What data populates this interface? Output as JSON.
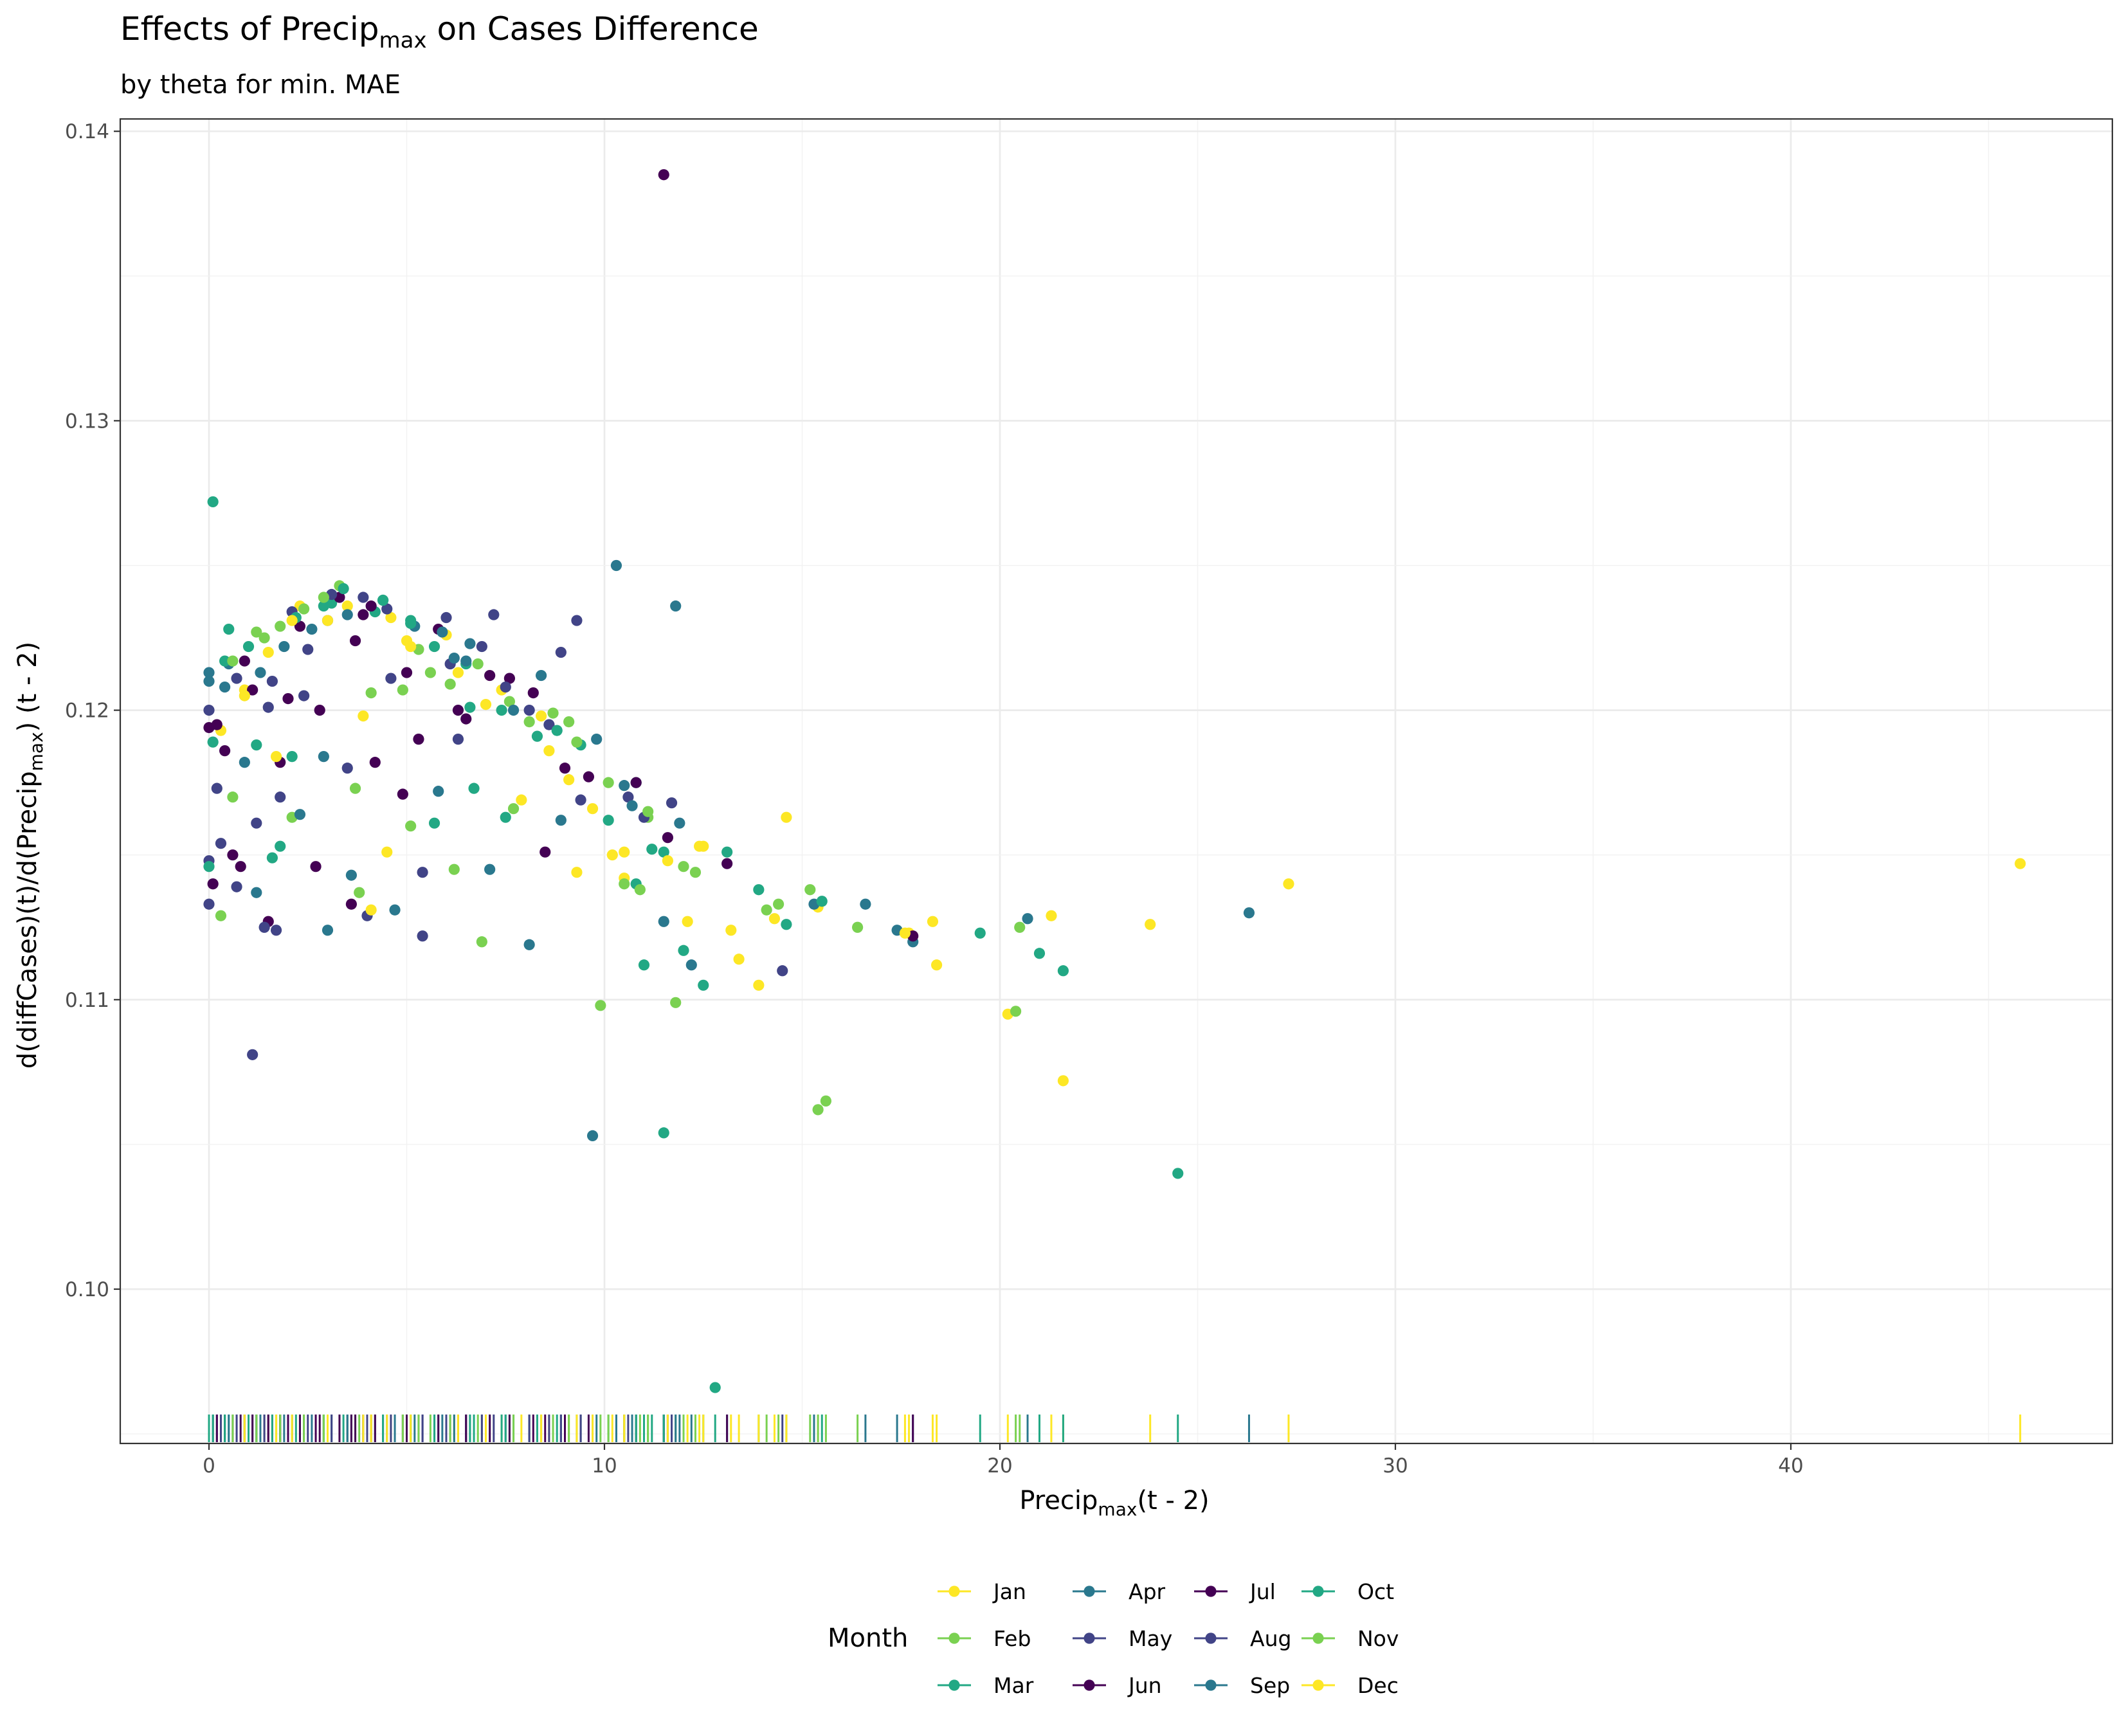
{
  "chart_data": {
    "type": "scatter",
    "title": "Effects of Precip",
    "title_sub": "max",
    "title_rest": " on Cases Difference",
    "subtitle": "by theta for min. MAE",
    "xlabel": "Precip",
    "xlabel_sub": "max",
    "xlabel_rest": "(t - 2)",
    "ylabel_pre": "d(diffCases)(t)/d(Precip",
    "ylabel_sub": "max",
    "ylabel_post": ") (t - 2)",
    "xlim": [
      -2.3,
      47.9
    ],
    "ylim": [
      0.0946,
      0.1408
    ],
    "x_ticks": [
      0,
      10,
      20,
      30,
      40
    ],
    "x_tick_labels": [
      "0",
      "10",
      "20",
      "30",
      "40"
    ],
    "y_ticks": [
      0.1,
      0.11,
      0.12,
      0.13,
      0.14
    ],
    "y_tick_labels": [
      "0.10",
      "0.11",
      "0.12",
      "0.13",
      "0.14"
    ],
    "grid": true,
    "rug": true,
    "legend": {
      "title": "Month",
      "position": "bottom",
      "items": [
        {
          "label": "Jan",
          "color": "#FDE725"
        },
        {
          "label": "Feb",
          "color": "#7AD151"
        },
        {
          "label": "Mar",
          "color": "#22A884"
        },
        {
          "label": "Apr",
          "color": "#2A788E"
        },
        {
          "label": "May",
          "color": "#414487"
        },
        {
          "label": "Jun",
          "color": "#440154"
        },
        {
          "label": "Jul",
          "color": "#440154"
        },
        {
          "label": "Aug",
          "color": "#414487"
        },
        {
          "label": "Sep",
          "color": "#2A788E"
        },
        {
          "label": "Oct",
          "color": "#22A884"
        },
        {
          "label": "Nov",
          "color": "#7AD151"
        },
        {
          "label": "Dec",
          "color": "#FDE725"
        }
      ]
    },
    "series": [
      {
        "name": "Jan",
        "color": "#FDE725",
        "points": [
          [
            0.3,
            0.1193
          ],
          [
            0.9,
            0.1207
          ],
          [
            1.5,
            0.122
          ],
          [
            2.3,
            0.1236
          ],
          [
            3.5,
            0.1236
          ],
          [
            4.6,
            0.1232
          ],
          [
            5.0,
            0.1224
          ],
          [
            6.0,
            0.1226
          ],
          [
            7.4,
            0.1207
          ],
          [
            8.6,
            0.1186
          ],
          [
            9.1,
            0.1176
          ],
          [
            10.2,
            0.115
          ],
          [
            10.5,
            0.1142
          ],
          [
            12.4,
            0.1153
          ],
          [
            13.2,
            0.1124
          ],
          [
            14.3,
            0.1128
          ],
          [
            15.4,
            0.1132
          ],
          [
            17.7,
            0.1123
          ],
          [
            18.3,
            0.1127
          ],
          [
            20.2,
            0.1095
          ],
          [
            21.6,
            0.1072
          ],
          [
            23.8,
            0.1126
          ],
          [
            27.3,
            0.114
          ],
          [
            45.8,
            0.1147
          ]
        ]
      },
      {
        "name": "Feb",
        "color": "#7AD151",
        "points": [
          [
            0.3,
            0.1129
          ],
          [
            0.6,
            0.117
          ],
          [
            1.4,
            0.1225
          ],
          [
            2.1,
            0.1163
          ],
          [
            3.3,
            0.1243
          ],
          [
            3.7,
            0.1173
          ],
          [
            4.1,
            0.1206
          ],
          [
            5.1,
            0.116
          ],
          [
            5.6,
            0.1213
          ],
          [
            6.2,
            0.1145
          ],
          [
            6.9,
            0.112
          ],
          [
            7.6,
            0.1203
          ],
          [
            8.1,
            0.1196
          ],
          [
            9.1,
            0.1196
          ],
          [
            9.9,
            0.1098
          ],
          [
            10.5,
            0.114
          ],
          [
            11.1,
            0.1163
          ],
          [
            11.8,
            0.1099
          ],
          [
            12.3,
            0.1144
          ],
          [
            14.4,
            0.1133
          ],
          [
            15.2,
            0.1138
          ],
          [
            15.4,
            0.1062
          ],
          [
            16.4,
            0.1125
          ],
          [
            20.4,
            0.1096
          ],
          [
            20.5,
            0.1125
          ]
        ]
      },
      {
        "name": "Mar",
        "color": "#22A884",
        "points": [
          [
            0.1,
            0.1189
          ],
          [
            0.5,
            0.1228
          ],
          [
            1.2,
            0.1188
          ],
          [
            1.8,
            0.1153
          ],
          [
            2.1,
            0.1184
          ],
          [
            3.1,
            0.1237
          ],
          [
            4.2,
            0.1234
          ],
          [
            5.1,
            0.1231
          ],
          [
            5.7,
            0.1222
          ],
          [
            6.5,
            0.1216
          ],
          [
            6.7,
            0.1173
          ],
          [
            7.4,
            0.12
          ],
          [
            8.3,
            0.1191
          ],
          [
            9.4,
            0.1188
          ],
          [
            10.1,
            0.1162
          ],
          [
            10.8,
            0.1175
          ],
          [
            11.2,
            0.1152
          ],
          [
            12.0,
            0.1117
          ],
          [
            12.5,
            0.1105
          ],
          [
            13.1,
            0.1151
          ],
          [
            14.6,
            0.1126
          ],
          [
            19.5,
            0.1123
          ],
          [
            21.6,
            0.111
          ],
          [
            24.5,
            0.104
          ],
          [
            11.5,
            0.1054
          ]
        ]
      },
      {
        "name": "Apr",
        "color": "#2A788E",
        "points": [
          [
            0.0,
            0.121
          ],
          [
            0.4,
            0.1208
          ],
          [
            0.9,
            0.1182
          ],
          [
            1.2,
            0.1137
          ],
          [
            2.3,
            0.1164
          ],
          [
            2.9,
            0.1184
          ],
          [
            3.6,
            0.1143
          ],
          [
            4.7,
            0.1131
          ],
          [
            5.8,
            0.1172
          ],
          [
            6.5,
            0.1217
          ],
          [
            7.1,
            0.1145
          ],
          [
            8.1,
            0.1119
          ],
          [
            8.9,
            0.1162
          ],
          [
            9.7,
            0.1053
          ],
          [
            10.3,
            0.125
          ],
          [
            10.5,
            0.1174
          ],
          [
            11.5,
            0.1127
          ],
          [
            11.8,
            0.1236
          ],
          [
            12.2,
            0.1112
          ],
          [
            15.3,
            0.1133
          ],
          [
            16.6,
            0.1133
          ],
          [
            17.8,
            0.112
          ],
          [
            20.7,
            0.1128
          ],
          [
            26.3,
            0.113
          ]
        ]
      },
      {
        "name": "May",
        "color": "#414487",
        "points": [
          [
            0.0,
            0.1133
          ],
          [
            0.2,
            0.1173
          ],
          [
            0.7,
            0.1211
          ],
          [
            1.1,
            0.1081
          ],
          [
            1.5,
            0.1201
          ],
          [
            1.8,
            0.117
          ],
          [
            2.4,
            0.1205
          ],
          [
            3.0,
            0.1231
          ],
          [
            3.5,
            0.118
          ],
          [
            4.0,
            0.1129
          ],
          [
            4.6,
            0.1211
          ],
          [
            5.4,
            0.1144
          ],
          [
            6.0,
            0.1232
          ],
          [
            6.3,
            0.119
          ],
          [
            7.2,
            0.1233
          ],
          [
            8.1,
            0.12
          ],
          [
            8.9,
            0.122
          ],
          [
            9.3,
            0.1231
          ],
          [
            10.6,
            0.117
          ],
          [
            11.0,
            0.1163
          ],
          [
            14.5,
            0.111
          ],
          [
            1.7,
            0.1124
          ]
        ]
      },
      {
        "name": "Jun",
        "color": "#440154",
        "points": [
          [
            0.1,
            0.114
          ],
          [
            0.4,
            0.1186
          ],
          [
            0.8,
            0.1146
          ],
          [
            1.5,
            0.1127
          ],
          [
            2.0,
            0.1204
          ],
          [
            2.7,
            0.1146
          ],
          [
            3.3,
            0.1239
          ],
          [
            3.7,
            0.1224
          ],
          [
            4.2,
            0.1182
          ],
          [
            4.9,
            0.1171
          ],
          [
            5.3,
            0.119
          ],
          [
            6.3,
            0.12
          ],
          [
            7.6,
            0.1211
          ],
          [
            8.5,
            0.1151
          ],
          [
            9.6,
            0.1177
          ],
          [
            11.5,
            0.1385
          ],
          [
            13.1,
            0.1147
          ],
          [
            0.9,
            0.1217
          ]
        ]
      },
      {
        "name": "Jul",
        "color": "#440154",
        "points": [
          [
            0.0,
            0.1194
          ],
          [
            0.2,
            0.1195
          ],
          [
            0.6,
            0.115
          ],
          [
            1.1,
            0.1207
          ],
          [
            1.8,
            0.1182
          ],
          [
            2.3,
            0.1229
          ],
          [
            2.8,
            0.12
          ],
          [
            3.6,
            0.1133
          ],
          [
            4.1,
            0.1236
          ],
          [
            5.0,
            0.1213
          ],
          [
            5.8,
            0.1228
          ],
          [
            6.5,
            0.1197
          ],
          [
            7.1,
            0.1212
          ],
          [
            8.2,
            0.1206
          ],
          [
            9.0,
            0.118
          ],
          [
            10.8,
            0.1175
          ],
          [
            11.6,
            0.1156
          ],
          [
            17.8,
            0.1122
          ],
          [
            3.9,
            0.1233
          ]
        ]
      },
      {
        "name": "Aug",
        "color": "#414487",
        "points": [
          [
            0.0,
            0.12
          ],
          [
            0.3,
            0.1154
          ],
          [
            0.7,
            0.1139
          ],
          [
            1.2,
            0.1161
          ],
          [
            1.6,
            0.121
          ],
          [
            2.1,
            0.1234
          ],
          [
            2.5,
            0.1221
          ],
          [
            3.1,
            0.124
          ],
          [
            3.9,
            0.1239
          ],
          [
            4.5,
            0.1235
          ],
          [
            5.4,
            0.1122
          ],
          [
            6.1,
            0.1216
          ],
          [
            6.9,
            0.1222
          ],
          [
            7.5,
            0.1208
          ],
          [
            8.6,
            0.1195
          ],
          [
            9.4,
            0.1169
          ],
          [
            11.7,
            0.1168
          ],
          [
            1.4,
            0.1125
          ],
          [
            0.0,
            0.1148
          ]
        ]
      },
      {
        "name": "Sep",
        "color": "#2A788E",
        "points": [
          [
            0.0,
            0.1213
          ],
          [
            0.5,
            0.1216
          ],
          [
            1.3,
            0.1213
          ],
          [
            1.9,
            0.1222
          ],
          [
            2.6,
            0.1228
          ],
          [
            3.0,
            0.1124
          ],
          [
            3.5,
            0.1233
          ],
          [
            4.4,
            0.1238
          ],
          [
            5.2,
            0.1229
          ],
          [
            5.9,
            0.1227
          ],
          [
            6.6,
            0.1223
          ],
          [
            7.7,
            0.12
          ],
          [
            8.4,
            0.1212
          ],
          [
            9.8,
            0.119
          ],
          [
            10.7,
            0.1167
          ],
          [
            11.9,
            0.1161
          ],
          [
            17.4,
            0.1124
          ],
          [
            6.2,
            0.1218
          ]
        ]
      },
      {
        "name": "Oct",
        "color": "#22A884",
        "points": [
          [
            0.1,
            0.1272
          ],
          [
            0.0,
            0.1146
          ],
          [
            0.4,
            0.1217
          ],
          [
            1.0,
            0.1222
          ],
          [
            1.6,
            0.1149
          ],
          [
            2.2,
            0.1232
          ],
          [
            2.9,
            0.1236
          ],
          [
            3.4,
            0.1242
          ],
          [
            4.4,
            0.1238
          ],
          [
            5.1,
            0.123
          ],
          [
            5.7,
            0.1161
          ],
          [
            6.6,
            0.1201
          ],
          [
            7.5,
            0.1163
          ],
          [
            8.8,
            0.1193
          ],
          [
            10.8,
            0.114
          ],
          [
            11.0,
            0.1112
          ],
          [
            11.5,
            0.1151
          ],
          [
            13.9,
            0.1138
          ],
          [
            15.5,
            0.1134
          ],
          [
            21.0,
            0.1116
          ],
          [
            12.8,
            0.0966
          ]
        ]
      },
      {
        "name": "Nov",
        "color": "#7AD151",
        "points": [
          [
            0.6,
            0.1217
          ],
          [
            1.2,
            0.1227
          ],
          [
            1.8,
            0.1229
          ],
          [
            2.4,
            0.1235
          ],
          [
            2.9,
            0.1239
          ],
          [
            3.8,
            0.1137
          ],
          [
            4.9,
            0.1207
          ],
          [
            5.3,
            0.1221
          ],
          [
            6.1,
            0.1209
          ],
          [
            6.8,
            0.1216
          ],
          [
            7.7,
            0.1166
          ],
          [
            8.7,
            0.1199
          ],
          [
            9.3,
            0.1189
          ],
          [
            10.1,
            0.1175
          ],
          [
            10.9,
            0.1138
          ],
          [
            12.0,
            0.1146
          ],
          [
            14.1,
            0.1131
          ],
          [
            15.6,
            0.1065
          ],
          [
            11.1,
            0.1165
          ]
        ]
      },
      {
        "name": "Dec",
        "color": "#FDE725",
        "points": [
          [
            0.9,
            0.1205
          ],
          [
            1.7,
            0.1184
          ],
          [
            2.1,
            0.1231
          ],
          [
            3.0,
            0.1231
          ],
          [
            3.9,
            0.1198
          ],
          [
            4.5,
            0.1151
          ],
          [
            5.1,
            0.1222
          ],
          [
            6.3,
            0.1213
          ],
          [
            7.0,
            0.1202
          ],
          [
            7.9,
            0.1169
          ],
          [
            8.4,
            0.1198
          ],
          [
            9.3,
            0.1144
          ],
          [
            9.7,
            0.1166
          ],
          [
            10.5,
            0.1151
          ],
          [
            11.6,
            0.1148
          ],
          [
            12.1,
            0.1127
          ],
          [
            12.5,
            0.1153
          ],
          [
            13.4,
            0.1114
          ],
          [
            13.9,
            0.1105
          ],
          [
            14.6,
            0.1163
          ],
          [
            17.6,
            0.1123
          ],
          [
            18.4,
            0.1112
          ],
          [
            21.3,
            0.1129
          ],
          [
            4.1,
            0.1131
          ]
        ]
      }
    ]
  }
}
